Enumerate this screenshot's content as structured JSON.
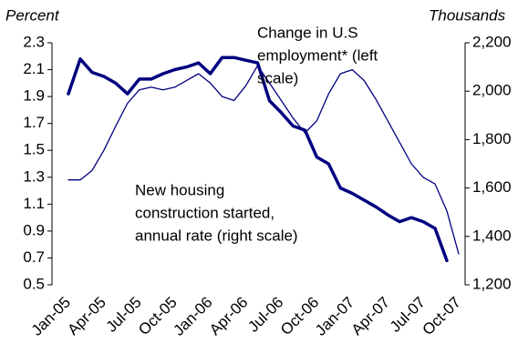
{
  "chart_data": {
    "type": "line",
    "y_label": "Percent",
    "y2_label": "Thousands",
    "annotations": [
      [
        "Change in U.S",
        "employment* (left",
        "scale)"
      ],
      [
        "New housing",
        "construction started,",
        "annual rate (right scale)"
      ]
    ],
    "categories": [
      "Jan-05",
      null,
      null,
      "Apr-05",
      null,
      null,
      "Jul-05",
      null,
      null,
      "Oct-05",
      null,
      null,
      "Jan-06",
      null,
      null,
      "Apr-06",
      null,
      null,
      "Jul-06",
      null,
      null,
      "Oct-06",
      null,
      null,
      "Jan-07",
      null,
      null,
      "Apr-07",
      null,
      null,
      "Jul-07",
      null,
      null,
      "Oct-07"
    ],
    "series": [
      {
        "color": "#000080",
        "width": 1.3,
        "values": [
          1.28,
          1.28,
          1.35,
          1.5,
          1.68,
          1.85,
          1.95,
          1.97,
          1.95,
          1.97,
          2.02,
          2.07,
          2.0,
          1.9,
          1.87,
          1.98,
          2.13,
          2.0,
          1.87,
          1.74,
          1.63,
          1.72,
          1.92,
          2.07,
          2.1,
          2.02,
          1.88,
          1.72,
          1.56,
          1.4,
          1.3,
          1.25,
          1.05,
          0.73
        ]
      },
      {
        "color": "#000080",
        "width": 3.5,
        "axis": "y2",
        "values": [
          1989,
          2133,
          2078,
          2061,
          2033,
          1989,
          2050,
          2050,
          2072,
          2089,
          2100,
          2117,
          2072,
          2139,
          2139,
          2128,
          2117,
          1961,
          1911,
          1856,
          1839,
          1728,
          1700,
          1600,
          1578,
          1550,
          1522,
          1489,
          1461,
          1478,
          1461,
          1433,
          1300,
          null
        ]
      }
    ],
    "ylim": [
      0.5,
      2.3
    ],
    "yticks": [
      0.5,
      0.7,
      0.9,
      1.1,
      1.3,
      1.5,
      1.7,
      1.9,
      2.1,
      2.3
    ],
    "y2lim": [
      1200,
      2200
    ],
    "y2ticks": [
      {
        "value": 1200,
        "label": "1,200"
      },
      {
        "value": 1400,
        "label": "1,400"
      },
      {
        "value": 1600,
        "label": "1,600"
      },
      {
        "value": 1800,
        "label": "1,800"
      },
      {
        "value": 2000,
        "label": "2,000"
      },
      {
        "value": 2200,
        "label": "2,200"
      }
    ],
    "grid": false
  }
}
